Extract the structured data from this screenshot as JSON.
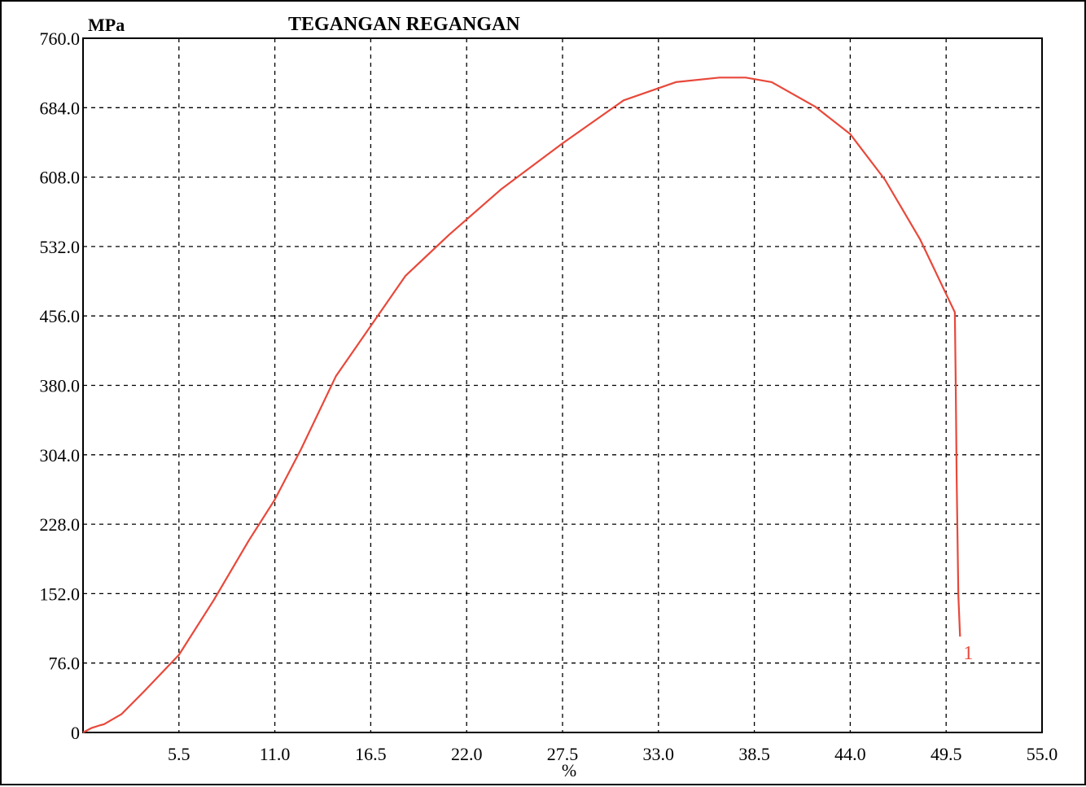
{
  "chart_data": {
    "type": "line",
    "title": "TEGANGAN REGANGAN",
    "xlabel": "%",
    "ylabel": "MPa",
    "xlim": [
      0,
      55
    ],
    "ylim": [
      0,
      760
    ],
    "x_ticks": [
      5.5,
      11.0,
      16.5,
      22.0,
      27.5,
      33.0,
      38.5,
      44.0,
      49.5,
      55.0
    ],
    "x_tick_labels": [
      "5.5",
      "11.0",
      "16.5",
      "22.0",
      "27.5",
      "33.0",
      "38.5",
      "44.0",
      "49.5",
      "55.0"
    ],
    "y_ticks": [
      0,
      76,
      152,
      228,
      304,
      380,
      456,
      532,
      608,
      684,
      760
    ],
    "y_tick_labels": [
      "0",
      "76.0",
      "152.0",
      "228.0",
      "304.0",
      "380.0",
      "456.0",
      "532.0",
      "608.0",
      "684.0",
      "760.0"
    ],
    "grid": true,
    "series": [
      {
        "name": "1",
        "color": "#e8483a",
        "x": [
          0,
          0.5,
          1.0,
          1.2,
          2.2,
          3.5,
          5.5,
          7.5,
          9.5,
          11.0,
          12.5,
          14.5,
          16.5,
          18.5,
          21.0,
          24.0,
          27.5,
          31.0,
          34.0,
          36.5,
          38.0,
          39.5,
          42.0,
          44.0,
          46.0,
          48.0,
          49.5,
          50.0,
          50.05,
          50.1,
          50.2,
          50.3
        ],
        "y": [
          0,
          5,
          8,
          9,
          20,
          45,
          85,
          145,
          210,
          255,
          310,
          390,
          445,
          500,
          545,
          595,
          645,
          692,
          712,
          717,
          717,
          712,
          685,
          655,
          605,
          540,
          480,
          460,
          380,
          280,
          150,
          105
        ]
      }
    ]
  }
}
